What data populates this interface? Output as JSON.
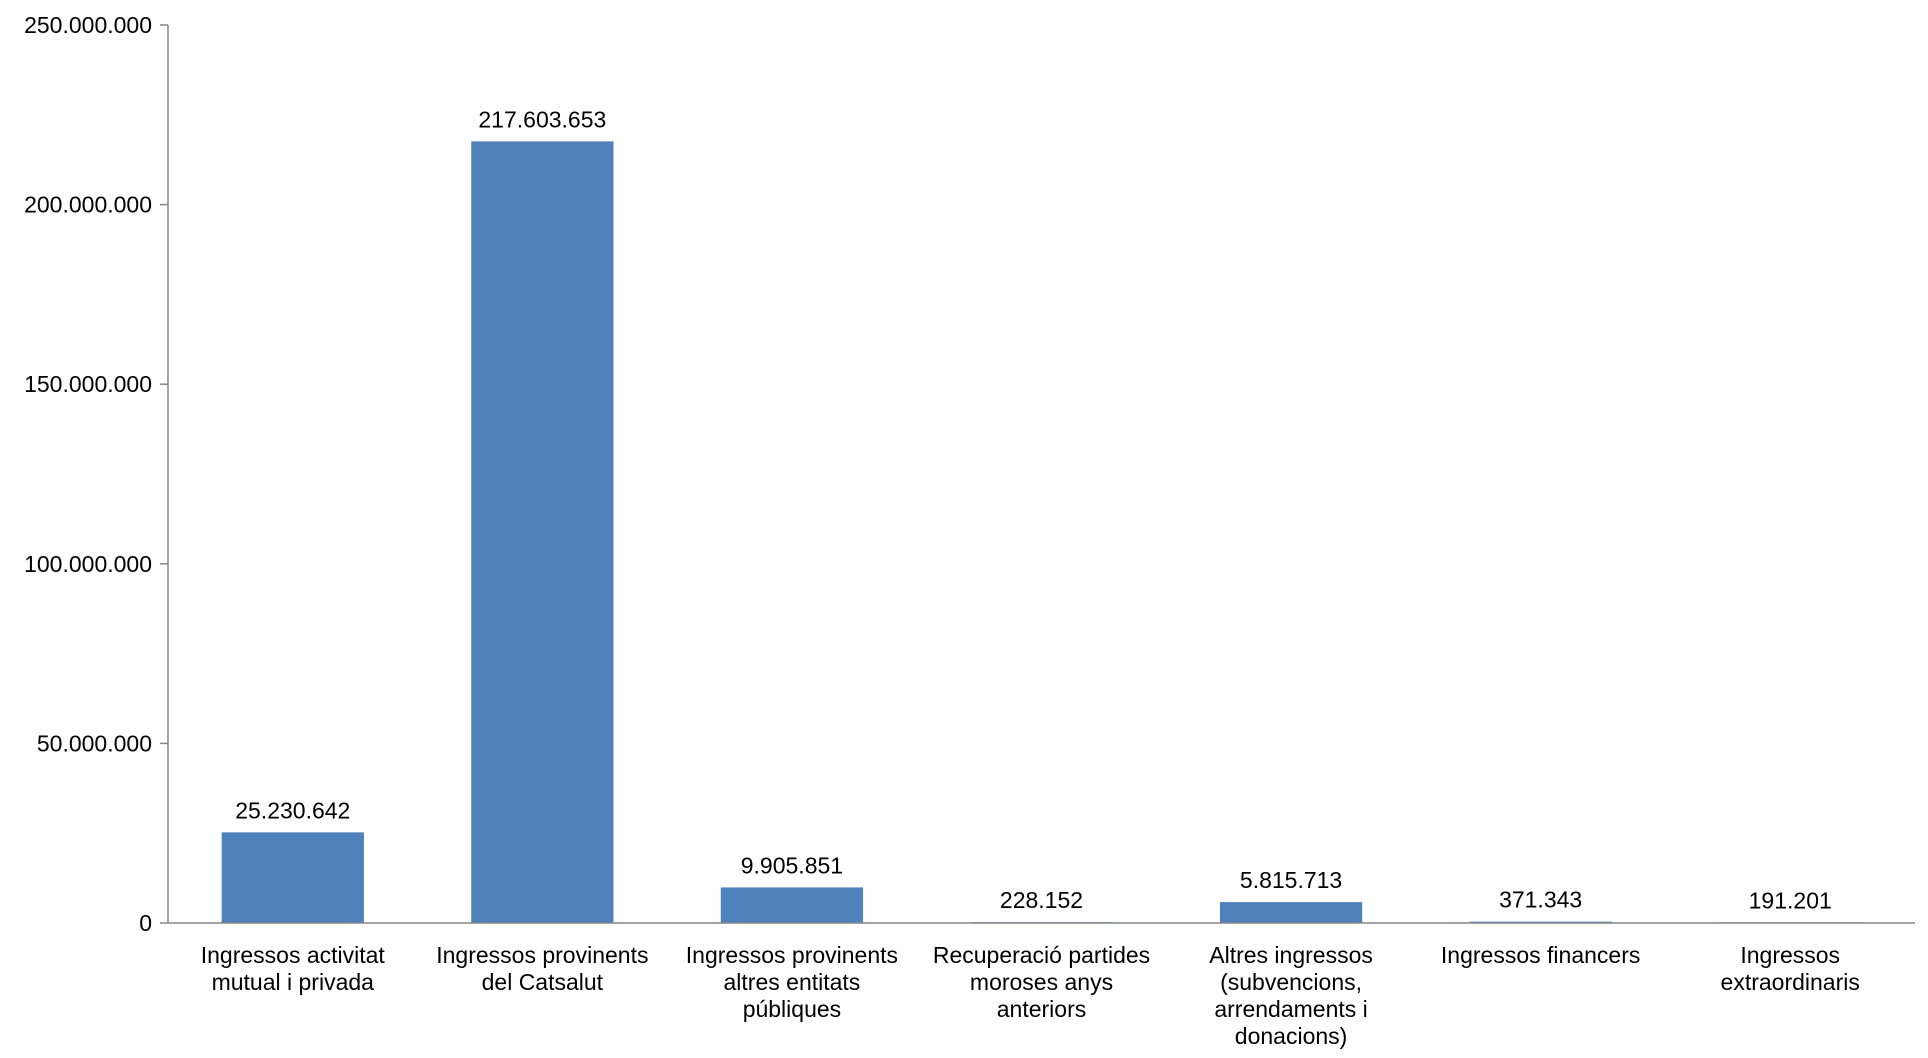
{
  "chart_data": {
    "type": "bar",
    "categories": [
      [
        "Ingressos activitat",
        "mutual i privada"
      ],
      [
        "Ingressos provinents",
        "del Catsalut"
      ],
      [
        "Ingressos provinents",
        "altres entitats",
        "públiques"
      ],
      [
        "Recuperació partides",
        "moroses anys",
        "anteriors"
      ],
      [
        "Altres ingressos",
        "(subvencions,",
        "arrendaments i",
        "donacions)"
      ],
      [
        "Ingressos financers"
      ],
      [
        "Ingressos",
        "extraordinaris"
      ]
    ],
    "values": [
      25230642,
      217603653,
      9905851,
      228152,
      5815713,
      371343,
      191201
    ],
    "data_labels": [
      "25.230.642",
      "217.603.653",
      "9.905.851",
      "228.152",
      "5.815.713",
      "371.343",
      "191.201"
    ],
    "yticks": [
      0,
      50000000,
      100000000,
      150000000,
      200000000,
      250000000
    ],
    "ytick_labels": [
      "0",
      "50.000.000",
      "100.000.000",
      "150.000.000",
      "200.000.000",
      "250.000.000"
    ],
    "ylim": [
      0,
      250000000
    ],
    "grid": false,
    "legend": "none",
    "bar_color": "#4f81bd"
  }
}
